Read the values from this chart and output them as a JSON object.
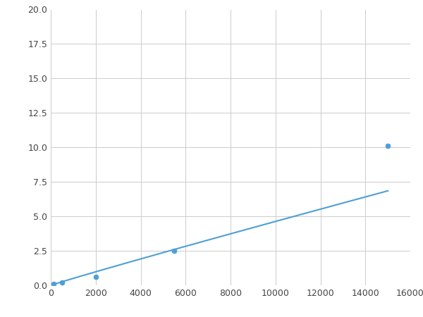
{
  "x": [
    125,
    500,
    2000,
    5500,
    15000
  ],
  "y": [
    0.1,
    0.2,
    0.6,
    2.5,
    10.1
  ],
  "line_color": "#4d9fd6",
  "marker_color": "#4d9fd6",
  "marker_size": 5,
  "line_width": 1.5,
  "xlim": [
    0,
    16000
  ],
  "ylim": [
    0,
    20
  ],
  "xticks": [
    0,
    2000,
    4000,
    6000,
    8000,
    10000,
    12000,
    14000,
    16000
  ],
  "yticks": [
    0.0,
    2.5,
    5.0,
    7.5,
    10.0,
    12.5,
    15.0,
    17.5,
    20.0
  ],
  "grid": true,
  "background_color": "#ffffff",
  "figsize": [
    6.0,
    4.5
  ],
  "dpi": 100
}
